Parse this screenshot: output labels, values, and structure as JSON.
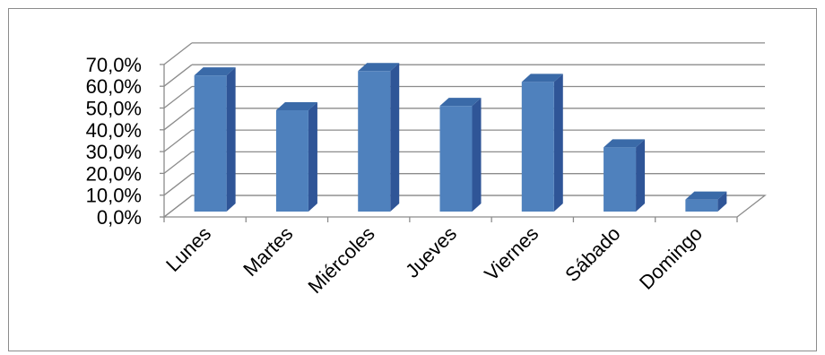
{
  "chart_data": {
    "type": "bar",
    "title": "",
    "xlabel": "",
    "ylabel": "",
    "categories": [
      "Lunes",
      "Martes",
      "Miércoles",
      "Jueves",
      "Viernes",
      "Sábado",
      "Domingo"
    ],
    "values": [
      62.5,
      46.5,
      64.5,
      48.5,
      59.5,
      29.5,
      5.5
    ],
    "ylim": [
      0,
      70
    ],
    "ytick_labels": [
      "0,0%",
      "10,0%",
      "20,0%",
      "30,0%",
      "40,0%",
      "50,0%",
      "60,0%",
      "70,0%"
    ],
    "grid": true,
    "legend": "none",
    "bar_color": "#4f81bd",
    "bar_side_color": "#2f5597",
    "bar_top_color": "#3a6aa8"
  }
}
